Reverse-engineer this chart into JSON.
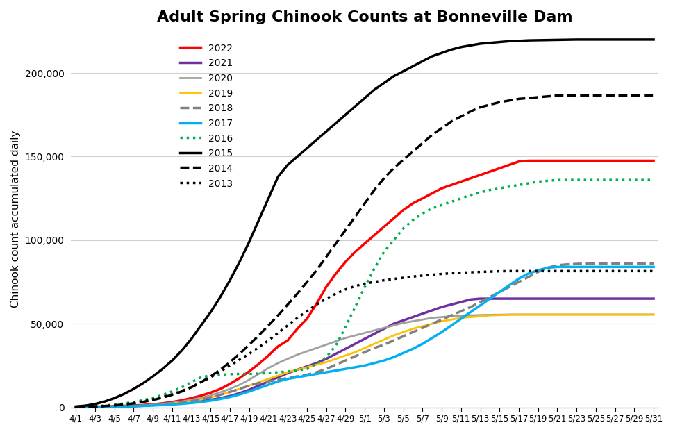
{
  "title": "Adult Spring Chinook Counts at Bonneville Dam",
  "ylabel": "Chinook count accumulated daily",
  "ylim": [
    0,
    225000
  ],
  "yticks": [
    0,
    50000,
    100000,
    150000,
    200000
  ],
  "series": {
    "2022": {
      "color": "#ff0000",
      "linestyle": "solid",
      "linewidth": 2.5,
      "values": [
        200,
        300,
        400,
        500,
        700,
        900,
        1100,
        1400,
        1800,
        2400,
        3200,
        4200,
        5500,
        7000,
        8800,
        11000,
        14000,
        17500,
        21500,
        26000,
        31000,
        36500,
        40000,
        47000,
        53000,
        62000,
        72000,
        80000,
        87000,
        93000,
        98000,
        103000,
        108000,
        113000,
        118000,
        122000,
        125000,
        128000,
        131000,
        133000,
        135000,
        137000,
        139000,
        141000,
        143000,
        145000,
        147000,
        147500,
        147500,
        147500,
        147500,
        147500,
        147500,
        147500,
        147500,
        147500,
        147500,
        147500,
        147500,
        147500,
        147500,
        147500
      ]
    },
    "2021": {
      "color": "#7030a0",
      "linestyle": "solid",
      "linewidth": 2.5,
      "values": [
        100,
        150,
        200,
        250,
        350,
        500,
        700,
        1000,
        1300,
        1700,
        2100,
        2600,
        3200,
        3800,
        4500,
        5500,
        6800,
        8500,
        10500,
        13000,
        15500,
        18000,
        20500,
        22500,
        24500,
        26500,
        29000,
        32000,
        35000,
        38000,
        41000,
        44000,
        47000,
        50000,
        52000,
        54000,
        56000,
        58000,
        60000,
        61500,
        63000,
        64500,
        65000,
        65000,
        65000,
        65000,
        65000,
        65000,
        65000,
        65000,
        65000,
        65000,
        65000,
        65000,
        65000,
        65000,
        65000,
        65000,
        65000,
        65000,
        65000,
        65000
      ]
    },
    "2020": {
      "color": "#a0a0a0",
      "linestyle": "solid",
      "linewidth": 2.0,
      "values": [
        100,
        150,
        200,
        300,
        450,
        650,
        900,
        1200,
        1600,
        2100,
        2700,
        3500,
        4500,
        5700,
        7200,
        9000,
        11000,
        13500,
        16500,
        20000,
        23500,
        26500,
        29000,
        31500,
        33500,
        35500,
        37500,
        39500,
        41500,
        43000,
        44500,
        46000,
        47500,
        49000,
        50500,
        51500,
        52500,
        53500,
        54000,
        54500,
        54800,
        55000,
        55200,
        55300,
        55400,
        55500,
        55500,
        55500,
        55500,
        55500,
        55500,
        55500,
        55500,
        55500,
        55500,
        55500,
        55500,
        55500,
        55500,
        55500,
        55500,
        55500
      ]
    },
    "2019": {
      "color": "#ffc000",
      "linestyle": "solid",
      "linewidth": 2.0,
      "values": [
        100,
        150,
        200,
        300,
        400,
        550,
        750,
        1000,
        1400,
        1800,
        2300,
        2900,
        3700,
        4700,
        6000,
        7500,
        9200,
        11000,
        13000,
        15000,
        17000,
        19000,
        21000,
        22500,
        24000,
        25500,
        27000,
        29000,
        31000,
        33000,
        35500,
        38000,
        40500,
        43000,
        45000,
        47000,
        48500,
        50000,
        51500,
        52500,
        53500,
        54000,
        54500,
        55000,
        55200,
        55400,
        55500,
        55500,
        55500,
        55500,
        55500,
        55500,
        55500,
        55500,
        55500,
        55500,
        55500,
        55500,
        55500,
        55500,
        55500,
        55500
      ]
    },
    "2018": {
      "color": "#808080",
      "linestyle": "dashed",
      "linewidth": 2.5,
      "values": [
        100,
        150,
        200,
        300,
        400,
        550,
        750,
        1000,
        1400,
        1800,
        2300,
        2900,
        3700,
        4700,
        6000,
        7500,
        9200,
        11000,
        13000,
        14500,
        15500,
        16500,
        17500,
        18500,
        19500,
        21000,
        23000,
        25500,
        28000,
        30500,
        33000,
        35500,
        37500,
        40000,
        42500,
        45000,
        47500,
        50000,
        52500,
        55000,
        57500,
        60000,
        63000,
        66000,
        69000,
        72000,
        75000,
        78000,
        81000,
        83500,
        85000,
        85500,
        85800,
        86000,
        86000,
        86000,
        86000,
        86000,
        86000,
        86000,
        86000,
        86000
      ]
    },
    "2017": {
      "color": "#00b0f0",
      "linestyle": "solid",
      "linewidth": 2.5,
      "values": [
        100,
        150,
        200,
        300,
        400,
        550,
        700,
        900,
        1100,
        1400,
        1700,
        2100,
        2600,
        3200,
        4000,
        5000,
        6200,
        7700,
        9500,
        11500,
        13500,
        15500,
        17000,
        18000,
        19000,
        20000,
        21000,
        22000,
        23000,
        24000,
        25000,
        26500,
        28000,
        30000,
        32500,
        35000,
        38000,
        41500,
        45000,
        49000,
        53000,
        57000,
        61000,
        65000,
        69000,
        73000,
        77000,
        80000,
        82000,
        83500,
        84000,
        84000,
        84000,
        84000,
        84000,
        84000,
        84000,
        84000,
        84000,
        84000,
        84000,
        84000
      ]
    },
    "2016": {
      "color": "#00b050",
      "linestyle": "dotted",
      "linewidth": 2.5,
      "values": [
        200,
        400,
        700,
        1100,
        1600,
        2300,
        3200,
        4300,
        5700,
        7400,
        9500,
        12000,
        15000,
        18000,
        19000,
        19500,
        19800,
        20000,
        20000,
        20200,
        20500,
        21000,
        21500,
        22000,
        23000,
        26000,
        30000,
        37000,
        48000,
        60000,
        72000,
        83000,
        93000,
        100000,
        107000,
        112000,
        116000,
        119000,
        121000,
        123000,
        125000,
        127000,
        128500,
        130000,
        131000,
        132000,
        133000,
        134000,
        135000,
        135500,
        136000,
        136000,
        136000,
        136000,
        136000,
        136000,
        136000,
        136000,
        136000,
        136000,
        136000,
        136000
      ]
    },
    "2015": {
      "color": "#000000",
      "linestyle": "solid",
      "linewidth": 2.5,
      "values": [
        500,
        1000,
        2000,
        3500,
        5500,
        8000,
        11000,
        14500,
        18500,
        23000,
        28000,
        34000,
        41000,
        49000,
        57000,
        66000,
        76000,
        87000,
        99000,
        112000,
        125000,
        138000,
        145000,
        150000,
        155000,
        160000,
        165000,
        170000,
        175000,
        180000,
        185000,
        190000,
        194000,
        198000,
        201000,
        204000,
        207000,
        210000,
        212000,
        214000,
        215500,
        216500,
        217500,
        218000,
        218500,
        219000,
        219200,
        219500,
        219600,
        219700,
        219800,
        219900,
        220000,
        220000,
        220000,
        220000,
        220000,
        220000,
        220000,
        220000,
        220000,
        220000
      ]
    },
    "2014": {
      "color": "#000000",
      "linestyle": "dashed",
      "linewidth": 2.5,
      "values": [
        200,
        300,
        500,
        800,
        1200,
        1700,
        2400,
        3300,
        4400,
        5800,
        7500,
        9500,
        12000,
        15000,
        18500,
        22500,
        27000,
        32000,
        37500,
        43000,
        49000,
        55000,
        61500,
        68000,
        75000,
        82000,
        90000,
        98000,
        106000,
        114000,
        122000,
        130000,
        137000,
        143000,
        148000,
        153000,
        158000,
        163000,
        167000,
        171000,
        174000,
        177000,
        179500,
        181000,
        182500,
        183500,
        184500,
        185000,
        185500,
        186000,
        186500,
        186500,
        186500,
        186500,
        186500,
        186500,
        186500,
        186500,
        186500,
        186500,
        186500,
        186500
      ]
    },
    "2013": {
      "color": "#000000",
      "linestyle": "dotted",
      "linewidth": 2.5,
      "values": [
        200,
        300,
        500,
        800,
        1200,
        1800,
        2600,
        3600,
        4800,
        6200,
        7800,
        9800,
        12200,
        15000,
        18000,
        21500,
        25000,
        28500,
        32000,
        36000,
        40000,
        44500,
        49000,
        53500,
        57500,
        61500,
        65000,
        68000,
        70500,
        72500,
        74000,
        75000,
        76000,
        76800,
        77500,
        78200,
        78800,
        79300,
        79800,
        80200,
        80500,
        80800,
        81000,
        81200,
        81400,
        81500,
        81500,
        81500,
        81500,
        81500,
        81500,
        81500,
        81500,
        81500,
        81500,
        81500,
        81500,
        81500,
        81500,
        81500,
        81500,
        81500
      ]
    }
  },
  "legend_order": [
    "2022",
    "2021",
    "2020",
    "2019",
    "2018",
    "2017",
    "2016",
    "2015",
    "2014",
    "2013"
  ],
  "background_color": "#ffffff",
  "grid_color": "#d0d0d0",
  "xtick_labels": [
    "4/1",
    "4/3",
    "4/5",
    "4/7",
    "4/9",
    "4/11",
    "4/13",
    "4/15",
    "4/17",
    "4/19",
    "4/21",
    "4/23",
    "4/25",
    "4/27",
    "4/29",
    "5/1",
    "5/3",
    "5/5",
    "5/7",
    "5/9",
    "5/11",
    "5/13",
    "5/15",
    "5/17",
    "5/19",
    "5/21",
    "5/23",
    "5/25",
    "5/27",
    "5/29",
    "5/31"
  ]
}
